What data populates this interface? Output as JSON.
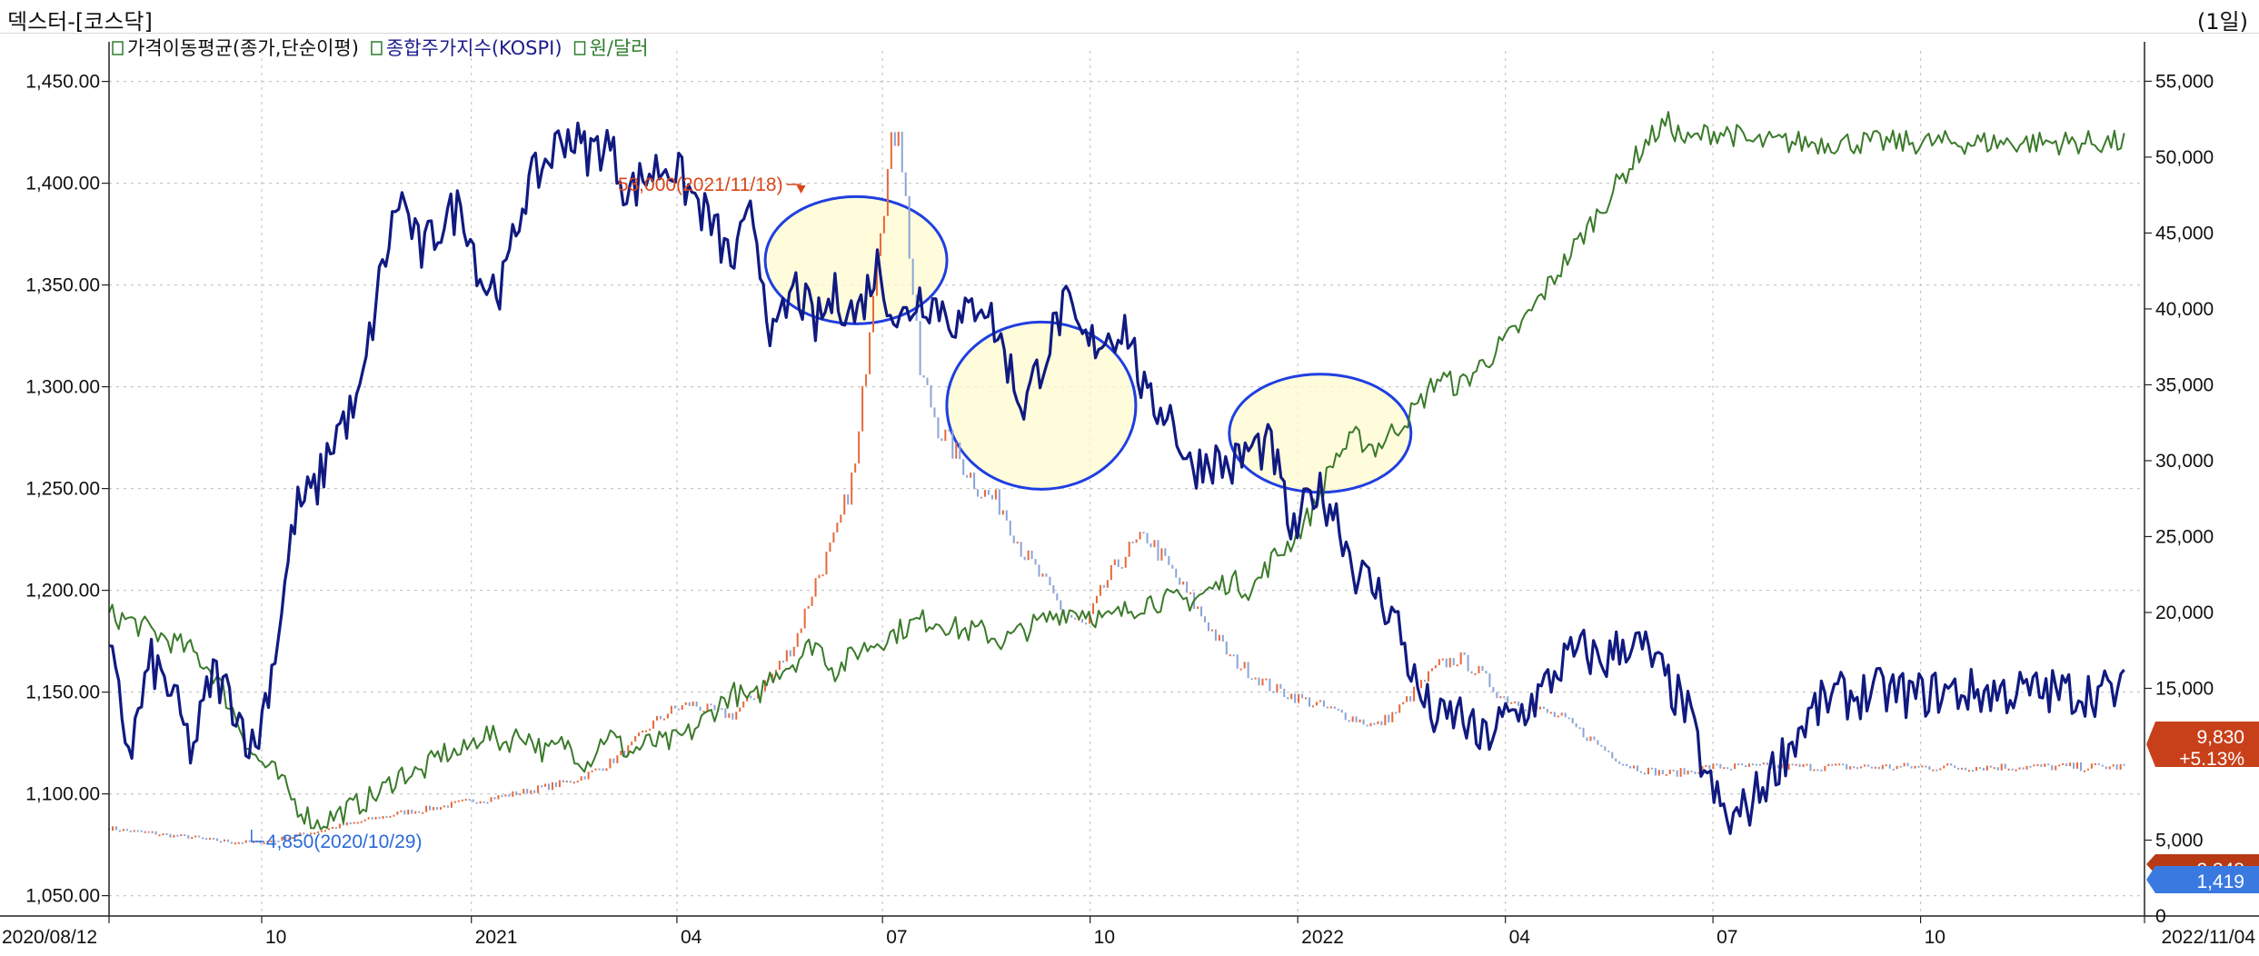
{
  "window": {
    "title": "덱스터-[코스닥]",
    "period": "(1일)"
  },
  "legend": [
    {
      "label": "가격이동평균(종가,단순이평)",
      "color": "#111111",
      "icon_color": "#2d7d2d"
    },
    {
      "label": "종합주가지수(KOSPI)",
      "color": "#1d1d8c",
      "icon_color": "#2d7d2d"
    },
    {
      "label": "원/달러",
      "color": "#2d7d2d",
      "icon_color": "#2d7d2d"
    }
  ],
  "colors": {
    "kospi": "#101a80",
    "usdkrw": "#3a7a2a",
    "price_up": "#e8683a",
    "price_down": "#8aa4d8",
    "ellipse_stroke": "#1f3fe0",
    "ellipse_fill": "#fffbd0",
    "high_annotation": "#d8471a",
    "low_annotation": "#2a6ad8",
    "current_price_badge": "#c8401a",
    "kospi_badge": "#3a7ae0",
    "badge_dark": "#b83a14"
  },
  "annotations": {
    "high": "53,000(2021/11/18)",
    "low": "4,850(2020/10/29)"
  },
  "badges": {
    "price": "9,830",
    "change": "+5.13%",
    "volume": "2,348",
    "kospi": "1,419"
  },
  "chart_data": {
    "type": "line",
    "title": "",
    "x_ticks": [
      "2020/08/12",
      "10",
      "2021",
      "04",
      "07",
      "10",
      "2022",
      "04",
      "07",
      "10",
      "2022/11/04"
    ],
    "x_range": [
      "2020/08/12",
      "2022/11/04"
    ],
    "left_axis": {
      "ticks": [
        "1,050.00",
        "1,100.00",
        "1,150.00",
        "1,200.00",
        "1,250.00",
        "1,300.00",
        "1,350.00",
        "1,400.00",
        "1,450.00"
      ],
      "range": [
        1040,
        1465
      ]
    },
    "right_axis": {
      "ticks": [
        "0",
        "5,000",
        "15,000",
        "20,000",
        "25,000",
        "30,000",
        "35,000",
        "40,000",
        "45,000",
        "50,000",
        "55,000"
      ],
      "range": [
        0,
        57000
      ]
    },
    "series": [
      {
        "name": "종합주가지수(KOSPI)",
        "axis": "left",
        "x": [
          0,
          0.02,
          0.035,
          0.05,
          0.06,
          0.07,
          0.08,
          0.09,
          0.1,
          0.11,
          0.12,
          0.13,
          0.14,
          0.15,
          0.16,
          0.17,
          0.18,
          0.19,
          0.2,
          0.21,
          0.22,
          0.23,
          0.24,
          0.25,
          0.26,
          0.27,
          0.28,
          0.29,
          0.3,
          0.31,
          0.32,
          0.33,
          0.34,
          0.35,
          0.36,
          0.37,
          0.38,
          0.39,
          0.4,
          0.41,
          0.42,
          0.43,
          0.44,
          0.45,
          0.46,
          0.47,
          0.48,
          0.49,
          0.5,
          0.51,
          0.52,
          0.53,
          0.54,
          0.55,
          0.56,
          0.57,
          0.58,
          0.59,
          0.6,
          0.61,
          0.62,
          0.63,
          0.64,
          0.65,
          0.66,
          0.67,
          0.68,
          0.69,
          0.7,
          0.71,
          0.72,
          0.73,
          0.74,
          0.75,
          0.76,
          0.77,
          0.78,
          0.79,
          0.8,
          0.81,
          0.82,
          0.83,
          0.84,
          0.85,
          0.86,
          0.87,
          0.88,
          0.89,
          0.9,
          0.91,
          0.92,
          0.93,
          0.94,
          0.95,
          0.96,
          0.97,
          0.98,
          0.99,
          1.0
        ],
        "values": [
          1170,
          1120,
          1165,
          1150,
          1120,
          1160,
          1145,
          1120,
          1170,
          1240,
          1250,
          1280,
          1290,
          1350,
          1395,
          1365,
          1380,
          1390,
          1350,
          1350,
          1395,
          1410,
          1425,
          1415,
          1420,
          1395,
          1405,
          1410,
          1395,
          1380,
          1360,
          1385,
          1320,
          1350,
          1330,
          1345,
          1335,
          1360,
          1330,
          1345,
          1340,
          1330,
          1345,
          1320,
          1290,
          1315,
          1340,
          1320,
          1325,
          1330,
          1290,
          1290,
          1260,
          1265,
          1260,
          1270,
          1270,
          1225,
          1250,
          1240,
          1210,
          1200,
          1185,
          1150,
          1135,
          1140,
          1125,
          1135,
          1140,
          1150,
          1165,
          1170,
          1165,
          1175,
          1170,
          1155,
          1140,
          1105,
          1085,
          1095,
          1110,
          1125,
          1140,
          1148,
          1148,
          1150,
          1150,
          1148,
          1150,
          1150,
          1150,
          1150,
          1150,
          1150,
          1150,
          1150,
          1150,
          1150,
          1150
        ]
      },
      {
        "name": "원/달러",
        "axis": "left",
        "values": [
          1188,
          1185,
          1180,
          1175,
          1170,
          1160,
          1140,
          1118,
          1110,
          1095,
          1085,
          1090,
          1095,
          1100,
          1110,
          1110,
          1120,
          1120,
          1130,
          1125,
          1130,
          1120,
          1125,
          1115,
          1130,
          1120,
          1125,
          1125,
          1130,
          1140,
          1150,
          1145,
          1160,
          1165,
          1175,
          1160,
          1170,
          1175,
          1180,
          1185,
          1185,
          1180,
          1180,
          1175,
          1180,
          1185,
          1190,
          1190,
          1185,
          1190,
          1195,
          1195,
          1195,
          1200,
          1205,
          1200,
          1215,
          1225,
          1240,
          1265,
          1275,
          1270,
          1280,
          1290,
          1305,
          1300,
          1310,
          1320,
          1330,
          1345,
          1360,
          1375,
          1390,
          1405,
          1420,
          1430,
          1420,
          1425,
          1425,
          1420,
          1420,
          1420,
          1420,
          1420,
          1420,
          1420,
          1420,
          1420,
          1420,
          1420,
          1420,
          1420,
          1420,
          1420,
          1420,
          1420,
          1420,
          1420,
          1420
        ]
      },
      {
        "name": "가격이동평균(종가,단순이평)",
        "axis": "right",
        "values": [
          5800,
          5600,
          5500,
          5300,
          5200,
          5000,
          4900,
          4850,
          5000,
          5300,
          5600,
          5900,
          6200,
          6500,
          6800,
          7000,
          7200,
          7500,
          7700,
          7900,
          8200,
          8500,
          8800,
          9300,
          10000,
          11000,
          12500,
          13500,
          14000,
          13500,
          13200,
          14500,
          16000,
          18000,
          22000,
          25000,
          30000,
          45000,
          53000,
          36000,
          32000,
          30000,
          28000,
          27000,
          24000,
          22000,
          20000,
          19000,
          22000,
          24000,
          25000,
          23000,
          21000,
          19000,
          17000,
          16000,
          15000,
          14500,
          14000,
          13500,
          13000,
          12500,
          13500,
          15000,
          16500,
          17000,
          16000,
          14500,
          14000,
          13500,
          13000,
          12000,
          11000,
          10000,
          9600,
          9400,
          9500,
          9830,
          9830,
          9830,
          9830,
          9830,
          9830,
          9830,
          9830,
          9830,
          9830,
          9830,
          9830,
          9830,
          9830,
          9830,
          9830,
          9830,
          9830,
          9830,
          9830,
          9830,
          9830
        ]
      }
    ]
  }
}
